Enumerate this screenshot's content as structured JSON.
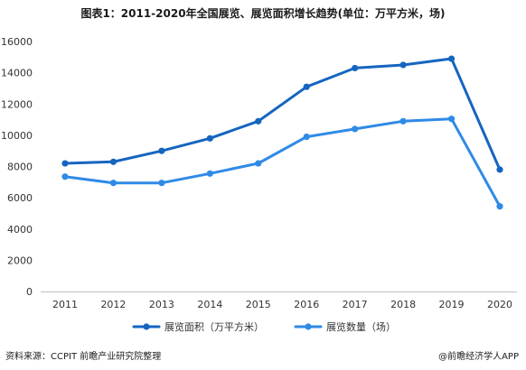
{
  "title": "图表1：2011-2020年全国展览、展览面积增长趋势(单位：万平方米，场)",
  "source": "资料来源：CCPIT 前瞻产业研究院整理",
  "watermark": "@前瞻经济学人APP",
  "chart_data": {
    "type": "line",
    "x": [
      "2011",
      "2012",
      "2013",
      "2014",
      "2015",
      "2016",
      "2017",
      "2018",
      "2019",
      "2020"
    ],
    "ylim": [
      0,
      16000
    ],
    "yticks": [
      0,
      2000,
      4000,
      6000,
      8000,
      10000,
      12000,
      14000,
      16000
    ],
    "legend_position": "bottom",
    "grid": false,
    "series": [
      {
        "name": "展览面积（万平方米）",
        "color": "#1565c0",
        "values": [
          8200,
          8300,
          9000,
          9800,
          10900,
          13100,
          14300,
          14500,
          14900,
          7800
        ]
      },
      {
        "name": "展览数量（场）",
        "color": "#2f8ae6",
        "values": [
          7350,
          6950,
          6950,
          7550,
          8200,
          9900,
          10400,
          10900,
          11050,
          5450
        ]
      }
    ]
  }
}
